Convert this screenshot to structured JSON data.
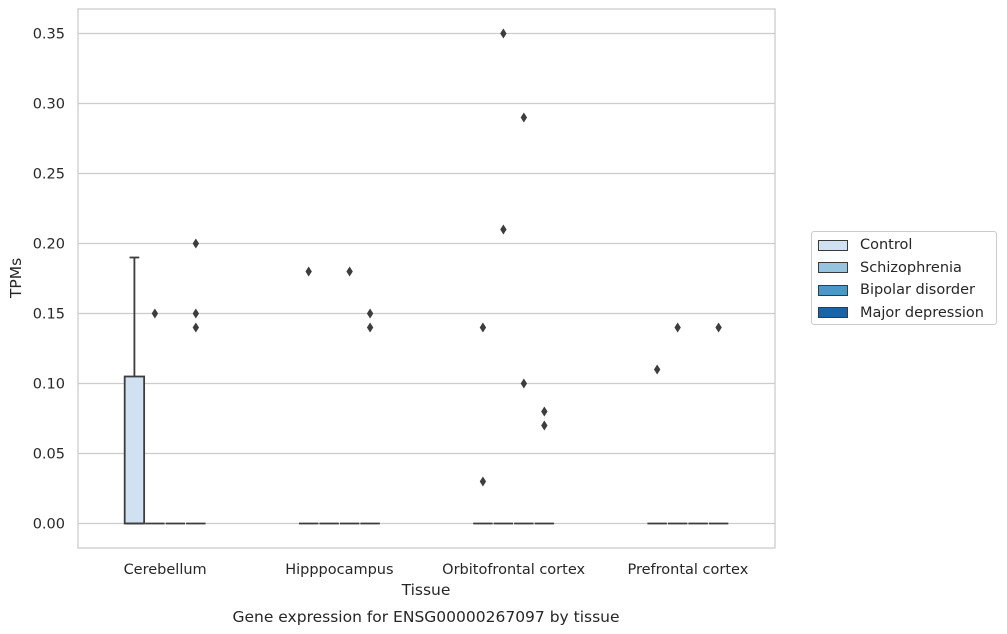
{
  "chart_data": {
    "type": "boxplot",
    "caption": "Gene expression for ENSG00000267097 by tissue",
    "xlabel": "Tissue",
    "ylabel": "TPMs",
    "ylim": [
      -0.0175,
      0.3675
    ],
    "yticks": [
      "0.00",
      "0.05",
      "0.10",
      "0.15",
      "0.20",
      "0.25",
      "0.30",
      "0.35"
    ],
    "grid": true,
    "legend_position": "right",
    "categories": [
      "Cerebellum",
      "Hipppocampus",
      "Orbitofrontal cortex",
      "Prefrontal cortex"
    ],
    "series": [
      {
        "name": "Control",
        "color": "#d0e1f2",
        "boxes": [
          {
            "q1": 0.0,
            "median": 0.0,
            "q3": 0.105,
            "whisker_low": 0.0,
            "whisker_high": 0.19
          },
          {
            "q1": 0.0,
            "median": 0.0,
            "q3": 0.0,
            "whisker_low": 0.0,
            "whisker_high": 0.0
          },
          {
            "q1": 0.0,
            "median": 0.0,
            "q3": 0.0,
            "whisker_low": 0.0,
            "whisker_high": 0.0
          },
          {
            "q1": 0.0,
            "median": 0.0,
            "q3": 0.0,
            "whisker_low": 0.0,
            "whisker_high": 0.0
          }
        ],
        "outliers": [
          [],
          [
            0.18
          ],
          [
            0.14,
            0.03
          ],
          [
            0.11
          ]
        ]
      },
      {
        "name": "Schizophrenia",
        "color": "#94c4df",
        "boxes": [
          {
            "q1": 0.0,
            "median": 0.0,
            "q3": 0.0,
            "whisker_low": 0.0,
            "whisker_high": 0.0
          },
          {
            "q1": 0.0,
            "median": 0.0,
            "q3": 0.0,
            "whisker_low": 0.0,
            "whisker_high": 0.0
          },
          {
            "q1": 0.0,
            "median": 0.0,
            "q3": 0.0,
            "whisker_low": 0.0,
            "whisker_high": 0.0
          },
          {
            "q1": 0.0,
            "median": 0.0,
            "q3": 0.0,
            "whisker_low": 0.0,
            "whisker_high": 0.0
          }
        ],
        "outliers": [
          [
            0.15
          ],
          [],
          [
            0.35,
            0.21
          ],
          [
            0.14
          ]
        ]
      },
      {
        "name": "Bipolar disorder",
        "color": "#4a98c9",
        "boxes": [
          {
            "q1": 0.0,
            "median": 0.0,
            "q3": 0.0,
            "whisker_low": 0.0,
            "whisker_high": 0.0
          },
          {
            "q1": 0.0,
            "median": 0.0,
            "q3": 0.0,
            "whisker_low": 0.0,
            "whisker_high": 0.0
          },
          {
            "q1": 0.0,
            "median": 0.0,
            "q3": 0.0,
            "whisker_low": 0.0,
            "whisker_high": 0.0
          },
          {
            "q1": 0.0,
            "median": 0.0,
            "q3": 0.0,
            "whisker_low": 0.0,
            "whisker_high": 0.0
          }
        ],
        "outliers": [
          [],
          [
            0.18
          ],
          [
            0.29,
            0.1
          ],
          []
        ]
      },
      {
        "name": "Major depression",
        "color": "#1764ab",
        "boxes": [
          {
            "q1": 0.0,
            "median": 0.0,
            "q3": 0.0,
            "whisker_low": 0.0,
            "whisker_high": 0.0
          },
          {
            "q1": 0.0,
            "median": 0.0,
            "q3": 0.0,
            "whisker_low": 0.0,
            "whisker_high": 0.0
          },
          {
            "q1": 0.0,
            "median": 0.0,
            "q3": 0.0,
            "whisker_low": 0.0,
            "whisker_high": 0.0
          },
          {
            "q1": 0.0,
            "median": 0.0,
            "q3": 0.0,
            "whisker_low": 0.0,
            "whisker_high": 0.0
          }
        ],
        "outliers": [
          [
            0.2,
            0.15,
            0.14
          ],
          [
            0.15,
            0.14
          ],
          [
            0.08,
            0.07
          ],
          [
            0.14
          ]
        ]
      }
    ]
  }
}
